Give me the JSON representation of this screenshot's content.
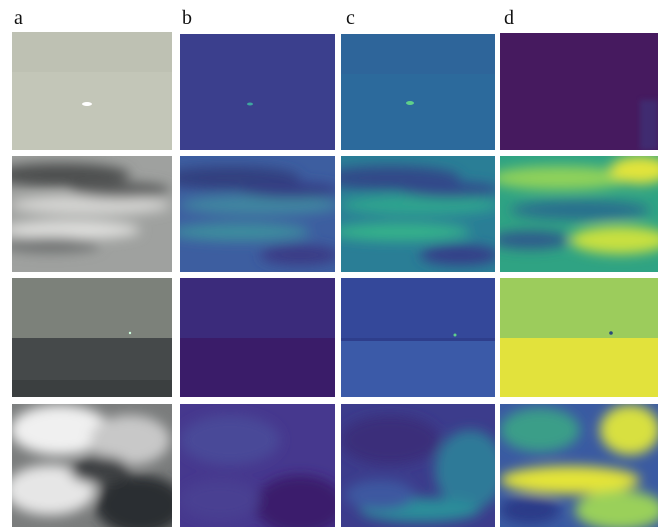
{
  "figure": {
    "columns": [
      "a",
      "b",
      "c",
      "d"
    ]
  }
}
